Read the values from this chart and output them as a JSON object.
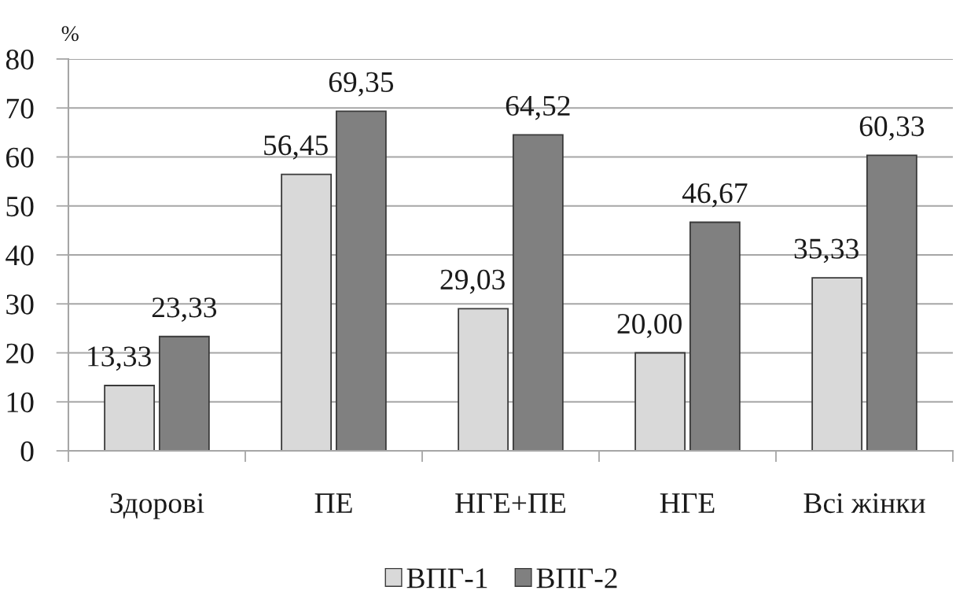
{
  "chart_data": {
    "type": "bar",
    "ylabel": "%",
    "categories": [
      "Здорові",
      "ПЕ",
      "НГЕ+ПЕ",
      "НГЕ",
      "Всі жінки"
    ],
    "series": [
      {
        "name": "ВПГ-1",
        "color": "#d9d9d9",
        "values": [
          13.33,
          56.45,
          29.03,
          20.0,
          35.33
        ],
        "value_labels": [
          "13,33",
          "56,45",
          "29,03",
          "20,00",
          "35,33"
        ]
      },
      {
        "name": "ВПГ-2",
        "color": "#808080",
        "values": [
          23.33,
          69.35,
          64.52,
          46.67,
          60.33
        ],
        "value_labels": [
          "23,33",
          "69,35",
          "64,52",
          "46,67",
          "60,33"
        ]
      }
    ],
    "ylim": [
      0,
      80
    ],
    "yticks": [
      0,
      10,
      20,
      30,
      40,
      50,
      60,
      70,
      80
    ],
    "grid": "y",
    "legend": "bottom"
  }
}
